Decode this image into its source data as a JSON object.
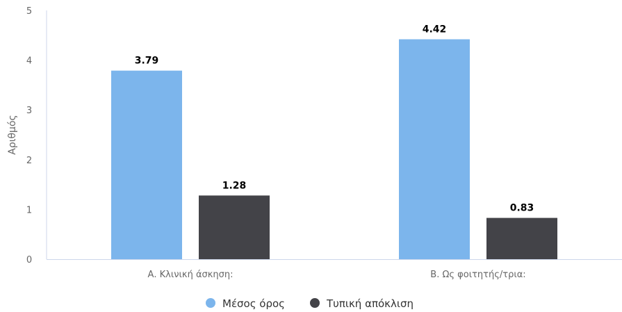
{
  "chart_data": {
    "type": "bar",
    "categories": [
      "Α. Κλινική άσκηση:",
      "Β. Ως φοιτητής/τρια:"
    ],
    "series": [
      {
        "name": "Μέσος όρος",
        "color": "#7cb5ec",
        "values": [
          3.79,
          4.42
        ]
      },
      {
        "name": "Τυπική απόκλιση",
        "color": "#434348",
        "values": [
          1.28,
          0.83
        ]
      }
    ],
    "data_labels": [
      [
        "3.79",
        "4.42"
      ],
      [
        "1.28",
        "0.83"
      ]
    ],
    "title": "",
    "xlabel": "",
    "ylabel": "Αριθμός",
    "ylim": [
      0,
      5
    ],
    "yticks": [
      0,
      1,
      2,
      3,
      4,
      5
    ],
    "ytick_labels": [
      "0",
      "1",
      "2",
      "3",
      "4",
      "5"
    ],
    "grid": false,
    "legend": "bottom-center"
  },
  "colors": {
    "axis_line": "#ccd6eb",
    "text": "#666666"
  }
}
